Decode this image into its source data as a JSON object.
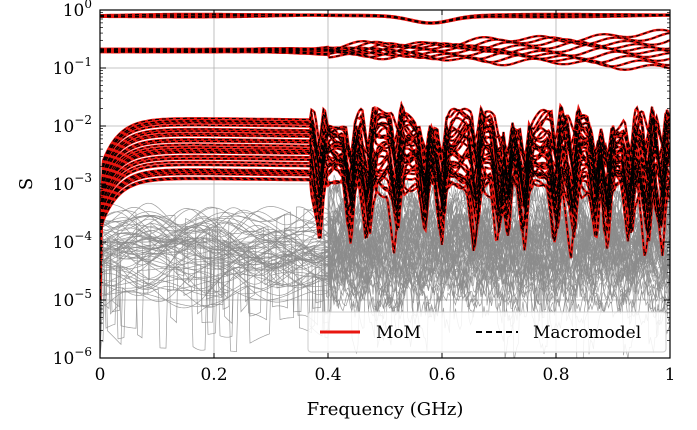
{
  "chart_data": {
    "type": "line",
    "title": "",
    "xlabel": "Frequency (GHz)",
    "ylabel": "S",
    "x_scale": "linear",
    "y_scale": "log",
    "xlim": [
      0,
      1
    ],
    "ylim": [
      1e-06,
      1
    ],
    "x_ticks": [
      0,
      0.2,
      0.4,
      0.6,
      0.8,
      1
    ],
    "x_tick_labels": [
      "0",
      "0.2",
      "0.4",
      "0.6",
      "0.8",
      "1"
    ],
    "y_ticks": [
      1e-06,
      1e-05,
      0.0001,
      0.001,
      0.01,
      0.1,
      1
    ],
    "y_tick_labels": [
      {
        "base": "10",
        "exp": "−6"
      },
      {
        "base": "10",
        "exp": "−5"
      },
      {
        "base": "10",
        "exp": "−4"
      },
      {
        "base": "10",
        "exp": "−3"
      },
      {
        "base": "10",
        "exp": "−2"
      },
      {
        "base": "10",
        "exp": "−1"
      },
      {
        "base": "10",
        "exp": "0"
      }
    ],
    "grid": true,
    "legend": {
      "placement": "lower-right",
      "entries": [
        {
          "label": "MoM",
          "color": "#e8150f",
          "style": "solid"
        },
        {
          "label": "Macromodel",
          "color": "#000000",
          "style": "dashed"
        }
      ]
    },
    "series": [
      {
        "name": "MoM",
        "group": "transmission",
        "x": [
          0,
          0.1,
          0.2,
          0.3,
          0.4,
          0.5,
          0.55,
          0.6,
          0.7,
          0.8,
          0.9,
          1.0
        ],
        "y": [
          0.8,
          0.8,
          0.8,
          0.79,
          0.78,
          0.75,
          0.6,
          0.7,
          0.78,
          0.8,
          0.8,
          0.79
        ]
      },
      {
        "name": "MoM",
        "group": "reflection",
        "x": [
          0,
          0.1,
          0.2,
          0.3,
          0.4,
          0.5,
          0.6,
          0.7,
          0.8,
          0.9,
          1.0
        ],
        "y": [
          0.2,
          0.2,
          0.19,
          0.18,
          0.2,
          0.25,
          0.22,
          0.2,
          0.18,
          0.2,
          0.25
        ]
      },
      {
        "name": "MoM",
        "group": "coupling-upper",
        "x": [
          0,
          0.02,
          0.05,
          0.1,
          0.2,
          0.3,
          0.4,
          0.5,
          0.6,
          0.7,
          0.8,
          0.9,
          1.0
        ],
        "y": [
          0.0001,
          0.002,
          0.006,
          0.01,
          0.013,
          0.015,
          0.015,
          0.02,
          0.015,
          0.02,
          0.015,
          0.02,
          0.02
        ]
      },
      {
        "name": "MoM",
        "group": "coupling-lower",
        "x": [
          0,
          0.02,
          0.05,
          0.1,
          0.2,
          0.3,
          0.4,
          0.45,
          0.5,
          0.6,
          0.7,
          0.8,
          0.9,
          1.0
        ],
        "y": [
          5e-05,
          0.0005,
          0.0012,
          0.0015,
          0.0015,
          0.0012,
          0.001,
          0.0002,
          0.001,
          0.0003,
          0.001,
          0.0001,
          0.001,
          0.001
        ]
      },
      {
        "name": "Macromodel",
        "group": "matches MoM",
        "x": [
          0,
          0.5,
          1.0
        ],
        "y": [
          0.8,
          0.75,
          0.79
        ]
      },
      {
        "name": "",
        "group": "residual (gray)",
        "x": [
          0,
          0.1,
          0.2,
          0.3,
          0.4,
          0.5,
          0.6,
          0.7,
          0.8,
          0.9,
          1.0
        ],
        "y": [
          8e-05,
          0.0001,
          8e-05,
          0.0001,
          0.0001,
          0.0001,
          0.0001,
          0.0001,
          8e-05,
          0.0001,
          0.0001
        ]
      }
    ]
  },
  "colors": {
    "mom": "#e8150f",
    "macromodel": "#000000",
    "residual": "#8c8c8c",
    "grid": "#b0b0b0"
  }
}
